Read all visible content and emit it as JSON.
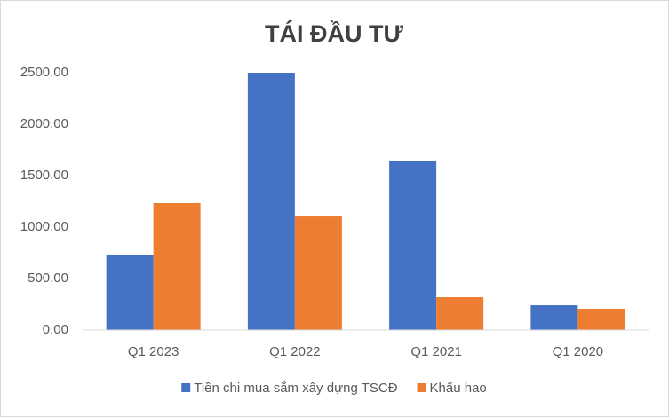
{
  "chart_data": {
    "type": "bar",
    "title": "TÁI ĐẦU TƯ",
    "categories": [
      "Q1 2023",
      "Q1 2022",
      "Q1 2021",
      "Q1 2020"
    ],
    "series": [
      {
        "name": "Tiền chi mua sắm xây dựng TSCĐ",
        "color": "#4472c4",
        "values": [
          733,
          2500,
          1647,
          241
        ]
      },
      {
        "name": "Khấu hao",
        "color": "#ed7d31",
        "values": [
          1233,
          1103,
          319,
          207
        ]
      }
    ],
    "ylim": [
      0,
      2500
    ],
    "yticks": [
      {
        "value": 0,
        "label": "0.00"
      },
      {
        "value": 500,
        "label": "500.00"
      },
      {
        "value": 1000,
        "label": "1000.00"
      },
      {
        "value": 1500,
        "label": "1500.00"
      },
      {
        "value": 2000,
        "label": "2000.00"
      },
      {
        "value": 2500,
        "label": "2500.00"
      }
    ],
    "grid": false,
    "legend": "bottom"
  }
}
